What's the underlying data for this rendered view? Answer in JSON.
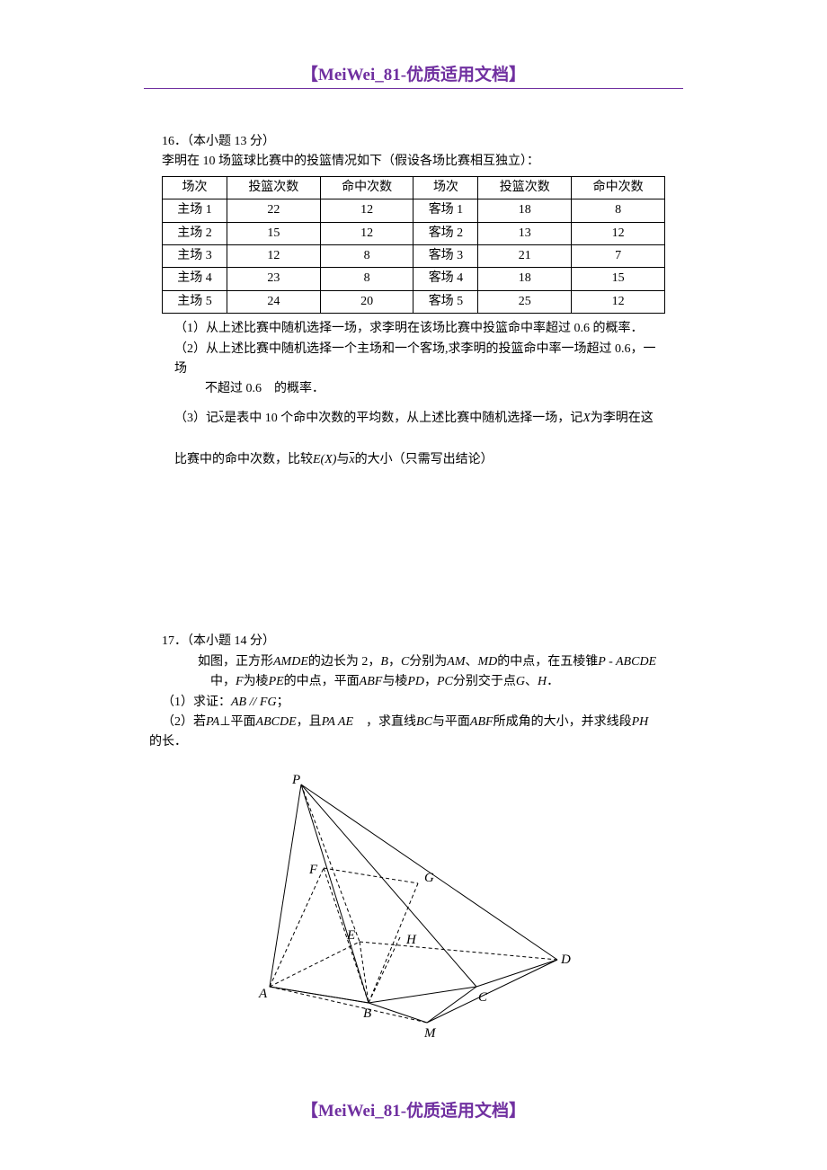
{
  "header": {
    "text": "【MeiWei_81-优质适用文档】",
    "color": "#7030a0"
  },
  "footer": {
    "text": "【MeiWei_81-优质适用文档】",
    "color": "#7030a0"
  },
  "q16": {
    "number": "16．",
    "points": "（本小题 13 分）",
    "intro": "李明在 10 场篮球比赛中的投篮情况如下（假设各场比赛相互独立）：",
    "table": {
      "columns": [
        "场次",
        "投篮次数",
        "命中次数",
        "场次",
        "投篮次数",
        "命中次数"
      ],
      "rows": [
        [
          "主场 1",
          "22",
          "12",
          "客场 1",
          "18",
          "8"
        ],
        [
          "主场 2",
          "15",
          "12",
          "客场 2",
          "13",
          "12"
        ],
        [
          "主场 3",
          "12",
          "8",
          "客场 3",
          "21",
          "7"
        ],
        [
          "主场 4",
          "23",
          "8",
          "客场 4",
          "18",
          "15"
        ],
        [
          "主场 5",
          "24",
          "20",
          "客场 5",
          "25",
          "12"
        ]
      ]
    },
    "sub1": "（1）从上述比赛中随机选择一场，求李明在该场比赛中投篮命中率超过 0.6 的概率．",
    "sub2a": "（2）从上述比赛中随机选择一个主场和一个客场,求李明的投篮命中率一场超过 0.6，一场",
    "sub2b": "不超过 0.6　的概率．",
    "sub3a_pre": "（3）记",
    "sub3a_post": "是表中 10 个命中次数的平均数，从上述比赛中随机选择一场，记",
    "sub3a_end": "为李明在这",
    "sub3b_pre": "比赛中的命中次数，比较",
    "sub3b_mid": "与",
    "sub3b_post": "的大小（只需写出结论）",
    "var_x": "x",
    "var_X": "X",
    "var_EX": "E(X)"
  },
  "q17": {
    "number": "17．",
    "points": "（本小题 14 分）",
    "body1_pre": "如图，正方形",
    "body1_amde": "AMDE",
    "body1_mid1": "的边长为 2，",
    "body1_b": "B",
    "body1_sep": "，",
    "body1_c": "C",
    "body1_mid2": "分别为",
    "body1_am": "AM",
    "body1_dot1": "、",
    "body1_md": "MD",
    "body1_mid3": "的中点，在五棱锥",
    "body1_p": "P - ABCDE",
    "body2_pre": "中，",
    "body2_f": "F",
    "body2_mid1": "为棱",
    "body2_pe": "PE",
    "body2_mid2": "的中点，平面",
    "body2_abf": "ABF",
    "body2_mid3": "与棱",
    "body2_pd": "PD",
    "body2_sep2": "，",
    "body2_pc": "PC",
    "body2_mid4": "分别交于点",
    "body2_g": "G",
    "body2_dot2": "、",
    "body2_h": "H",
    "body2_end": "．",
    "sub1_pre": "（1）求证：",
    "sub1_ab": "AB",
    "sub1_par": " // ",
    "sub1_fg": "FG",
    "sub1_end": "；",
    "sub2_pre": "（2）若",
    "sub2_pa": "PA",
    "sub2_perp": "⊥平面",
    "sub2_abcde": "ABCDE",
    "sub2_mid1": "，且",
    "sub2_pa2": "PA",
    "sub2_eq": " AE",
    "sub2_mid2": "　，求直线",
    "sub2_bc": "BC",
    "sub2_mid3": "与平面",
    "sub2_abf2": "ABF",
    "sub2_mid4": "所成角的大小，并求线段",
    "sub2_ph": "PH",
    "sub2_end": "的长．"
  },
  "diagram": {
    "labels": {
      "P": "P",
      "F": "F",
      "G": "G",
      "E": "E",
      "H": "H",
      "A": "A",
      "B": "B",
      "C": "C",
      "D": "D",
      "M": "M"
    },
    "stroke": "#000000",
    "label_fontsize": 15
  }
}
